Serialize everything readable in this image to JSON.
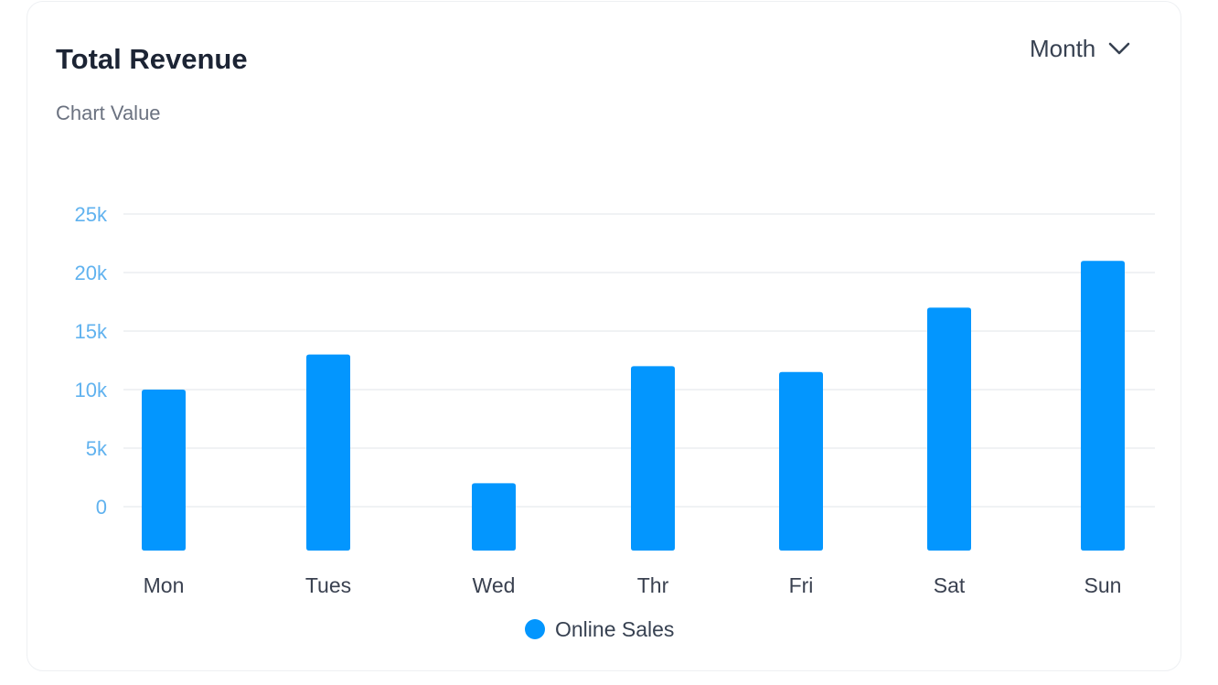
{
  "card": {
    "title": "Total Revenue",
    "subtitle": "Chart Value"
  },
  "period_select": {
    "value": "Month",
    "icon": "chevron-down-icon"
  },
  "colors": {
    "bar": "#0396fe",
    "ytick": "#60b2ef",
    "xtick": "#3a4150",
    "grid": "#eceef1"
  },
  "chart_data": {
    "type": "bar",
    "categories": [
      "Mon",
      "Tues",
      "Wed",
      "Thr",
      "Fri",
      "Sat",
      "Sun"
    ],
    "series": [
      {
        "name": "Online Sales",
        "values": [
          10000,
          13000,
          2000,
          12000,
          11500,
          17000,
          21000
        ]
      }
    ],
    "yticks": [
      "0",
      "5k",
      "10k",
      "15k",
      "20k",
      "25k"
    ],
    "ytick_values": [
      0,
      5000,
      10000,
      15000,
      20000,
      25000
    ],
    "ylim": [
      0,
      25000
    ],
    "grid": true,
    "legend": "bottom-center"
  }
}
